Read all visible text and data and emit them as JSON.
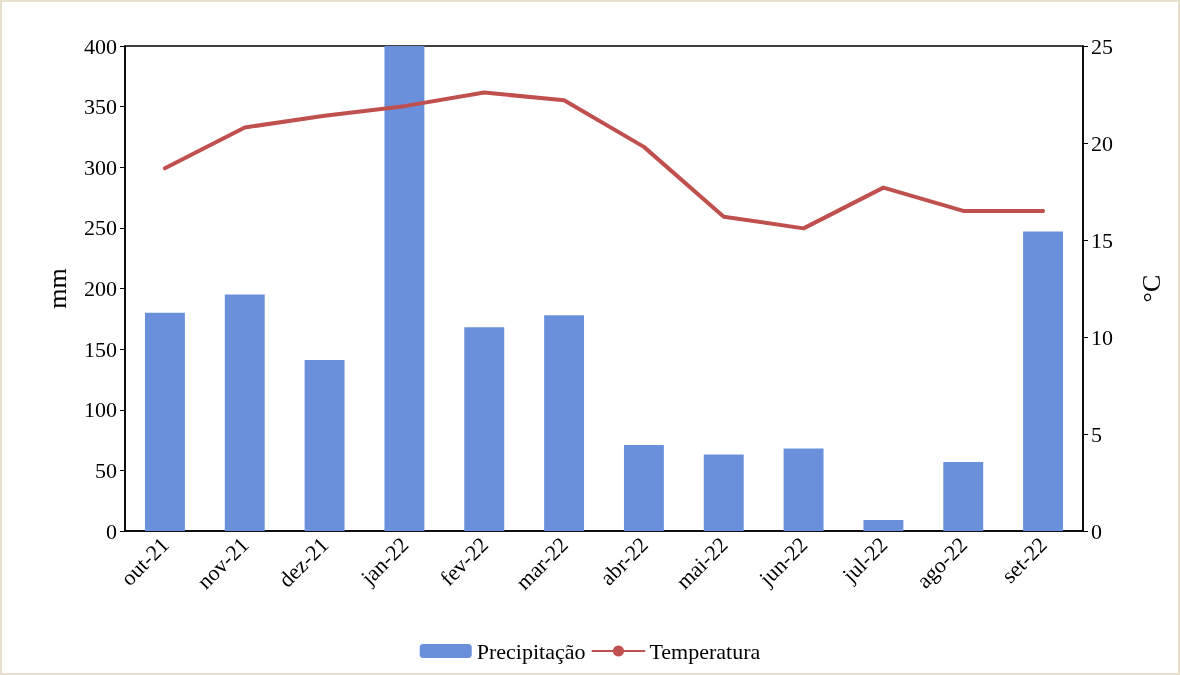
{
  "chart_data": {
    "type": "bar",
    "ylabel": "mm",
    "y2label": "°C",
    "categories": [
      "out-21",
      "nov-21",
      "dez-21",
      "jan-22",
      "fev-22",
      "mar-22",
      "abr-22",
      "mai-22",
      "jun-22",
      "jul-22",
      "ago-22",
      "set-22"
    ],
    "series": [
      {
        "name": "Precipitação",
        "color": "#6a8fdb",
        "values": [
          180,
          195,
          141,
          400,
          168,
          178,
          71,
          63,
          68,
          9,
          57,
          247
        ]
      },
      {
        "name": "Temperatura",
        "type": "line",
        "axis": "y2",
        "color": "#c0504d",
        "marker": "none",
        "values": [
          18.7,
          20.8,
          21.4,
          21.9,
          22.6,
          22.2,
          19.8,
          16.2,
          15.6,
          17.7,
          16.5,
          16.5
        ]
      }
    ],
    "ylim": [
      0,
      400
    ],
    "yticks": [
      0,
      50,
      100,
      150,
      200,
      250,
      300,
      350,
      400
    ],
    "y2lim": [
      0,
      25
    ],
    "y2ticks": [
      0,
      5,
      10,
      15,
      20,
      25
    ],
    "grid": false,
    "legend": "bottom"
  }
}
